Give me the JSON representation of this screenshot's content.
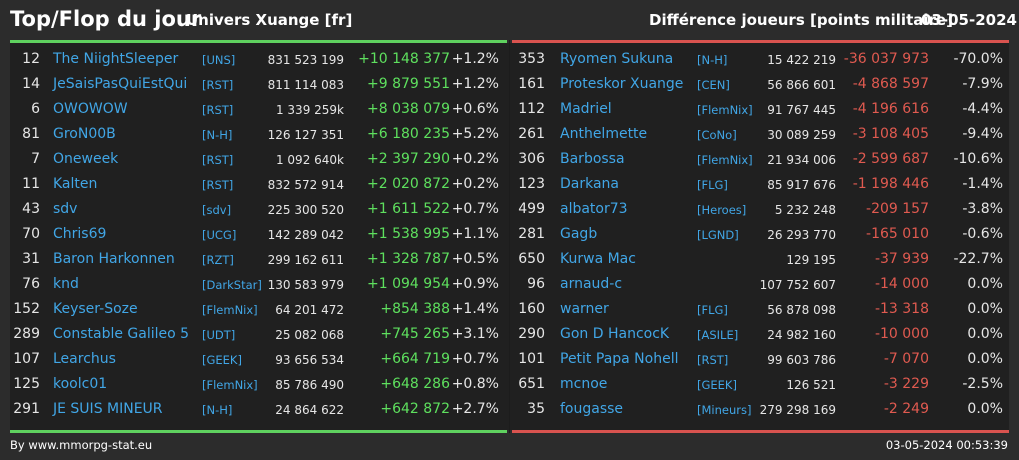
{
  "header": {
    "title": "Top/Flop du jour",
    "server": "Univers Xuange [fr]",
    "metric": "Différence joueurs [points militaire]",
    "date": "03-05-2024"
  },
  "colors": {
    "positive": "#5ee05e",
    "negative": "#e05a50",
    "link": "#41a6e6",
    "top_bar": "#5fd15f",
    "flop_bar": "#d9534f"
  },
  "top": [
    {
      "rank": "12",
      "name": "The NiightSleeper",
      "alliance": "[UNS]",
      "points": "831 523 199",
      "diff": "+10 148 377",
      "pct": "+1.2%"
    },
    {
      "rank": "14",
      "name": "JeSaisPasQuiEstQui",
      "alliance": "[RST]",
      "points": "811 114 083",
      "diff": "+9 879 551",
      "pct": "+1.2%"
    },
    {
      "rank": "6",
      "name": "OWOWOW",
      "alliance": "[RST]",
      "points": "1 339 259k",
      "diff": "+8 038 079",
      "pct": "+0.6%"
    },
    {
      "rank": "81",
      "name": "GroN00B",
      "alliance": "[N-H]",
      "points": "126 127 351",
      "diff": "+6 180 235",
      "pct": "+5.2%"
    },
    {
      "rank": "7",
      "name": "Oneweek",
      "alliance": "[RST]",
      "points": "1 092 640k",
      "diff": "+2 397 290",
      "pct": "+0.2%"
    },
    {
      "rank": "11",
      "name": "Kalten",
      "alliance": "[RST]",
      "points": "832 572 914",
      "diff": "+2 020 872",
      "pct": "+0.2%"
    },
    {
      "rank": "43",
      "name": "sdv",
      "alliance": "[sdv]",
      "points": "225 300 520",
      "diff": "+1 611 522",
      "pct": "+0.7%"
    },
    {
      "rank": "70",
      "name": "Chris69",
      "alliance": "[UCG]",
      "points": "142 289 042",
      "diff": "+1 538 995",
      "pct": "+1.1%"
    },
    {
      "rank": "31",
      "name": "Baron Harkonnen",
      "alliance": "[RZT]",
      "points": "299 162 611",
      "diff": "+1 328 787",
      "pct": "+0.5%"
    },
    {
      "rank": "76",
      "name": "knd",
      "alliance": "[DarkStar]",
      "points": "130 583 979",
      "diff": "+1 094 954",
      "pct": "+0.9%"
    },
    {
      "rank": "152",
      "name": "Keyser-Soze",
      "alliance": "[FlemNix]",
      "points": "64 201 472",
      "diff": "+854 388",
      "pct": "+1.4%"
    },
    {
      "rank": "289",
      "name": "Constable Galileo 5",
      "alliance": "[UDT]",
      "points": "25 082 068",
      "diff": "+745 265",
      "pct": "+3.1%"
    },
    {
      "rank": "107",
      "name": "Learchus",
      "alliance": "[GEEK]",
      "points": "93 656 534",
      "diff": "+664 719",
      "pct": "+0.7%"
    },
    {
      "rank": "125",
      "name": "koolc01",
      "alliance": "[FlemNix]",
      "points": "85 786 490",
      "diff": "+648 286",
      "pct": "+0.8%"
    },
    {
      "rank": "291",
      "name": "JE SUIS MINEUR",
      "alliance": "[N-H]",
      "points": "24 864 622",
      "diff": "+642 872",
      "pct": "+2.7%"
    }
  ],
  "flop": [
    {
      "rank": "353",
      "name": "Ryomen Sukuna",
      "alliance": "[N-H]",
      "points": "15 422 219",
      "diff": "-36 037 973",
      "pct": "-70.0%"
    },
    {
      "rank": "161",
      "name": "Proteskor Xuange",
      "alliance": "[CEN]",
      "points": "56 866 601",
      "diff": "-4 868 597",
      "pct": "-7.9%"
    },
    {
      "rank": "112",
      "name": "Madriel",
      "alliance": "[FlemNix]",
      "points": "91 767 445",
      "diff": "-4 196 616",
      "pct": "-4.4%"
    },
    {
      "rank": "261",
      "name": "Anthelmette",
      "alliance": "[CoNo]",
      "points": "30 089 259",
      "diff": "-3 108 405",
      "pct": "-9.4%"
    },
    {
      "rank": "306",
      "name": "Barbossa",
      "alliance": "[FlemNix]",
      "points": "21 934 006",
      "diff": "-2 599 687",
      "pct": "-10.6%"
    },
    {
      "rank": "123",
      "name": "Darkana",
      "alliance": "[FLG]",
      "points": "85 917 676",
      "diff": "-1 198 446",
      "pct": "-1.4%"
    },
    {
      "rank": "499",
      "name": "albator73",
      "alliance": "[Heroes]",
      "points": "5 232 248",
      "diff": "-209 157",
      "pct": "-3.8%"
    },
    {
      "rank": "281",
      "name": "Gagb",
      "alliance": "[LGND]",
      "points": "26 293 770",
      "diff": "-165 010",
      "pct": "-0.6%"
    },
    {
      "rank": "650",
      "name": "Kurwa Mac",
      "alliance": "",
      "points": "129 195",
      "diff": "-37 939",
      "pct": "-22.7%"
    },
    {
      "rank": "96",
      "name": "arnaud-c",
      "alliance": "",
      "points": "107 752 607",
      "diff": "-14 000",
      "pct": "0.0%"
    },
    {
      "rank": "160",
      "name": "warner",
      "alliance": "[FLG]",
      "points": "56 878 098",
      "diff": "-13 318",
      "pct": "0.0%"
    },
    {
      "rank": "290",
      "name": "Gon D HancocK",
      "alliance": "[ASILE]",
      "points": "24 982 160",
      "diff": "-10 000",
      "pct": "0.0%"
    },
    {
      "rank": "101",
      "name": "Petit Papa Nohell",
      "alliance": "[RST]",
      "points": "99 603 786",
      "diff": "-7 070",
      "pct": "0.0%"
    },
    {
      "rank": "651",
      "name": "mcnoe",
      "alliance": "[GEEK]",
      "points": "126 521",
      "diff": "-3 229",
      "pct": "-2.5%"
    },
    {
      "rank": "35",
      "name": "fougasse",
      "alliance": "[Mineurs]",
      "points": "279 298 169",
      "diff": "-2 249",
      "pct": "0.0%"
    }
  ],
  "footer": {
    "source": "By www.mmorpg-stat.eu",
    "generated": "03-05-2024 00:53:39"
  }
}
